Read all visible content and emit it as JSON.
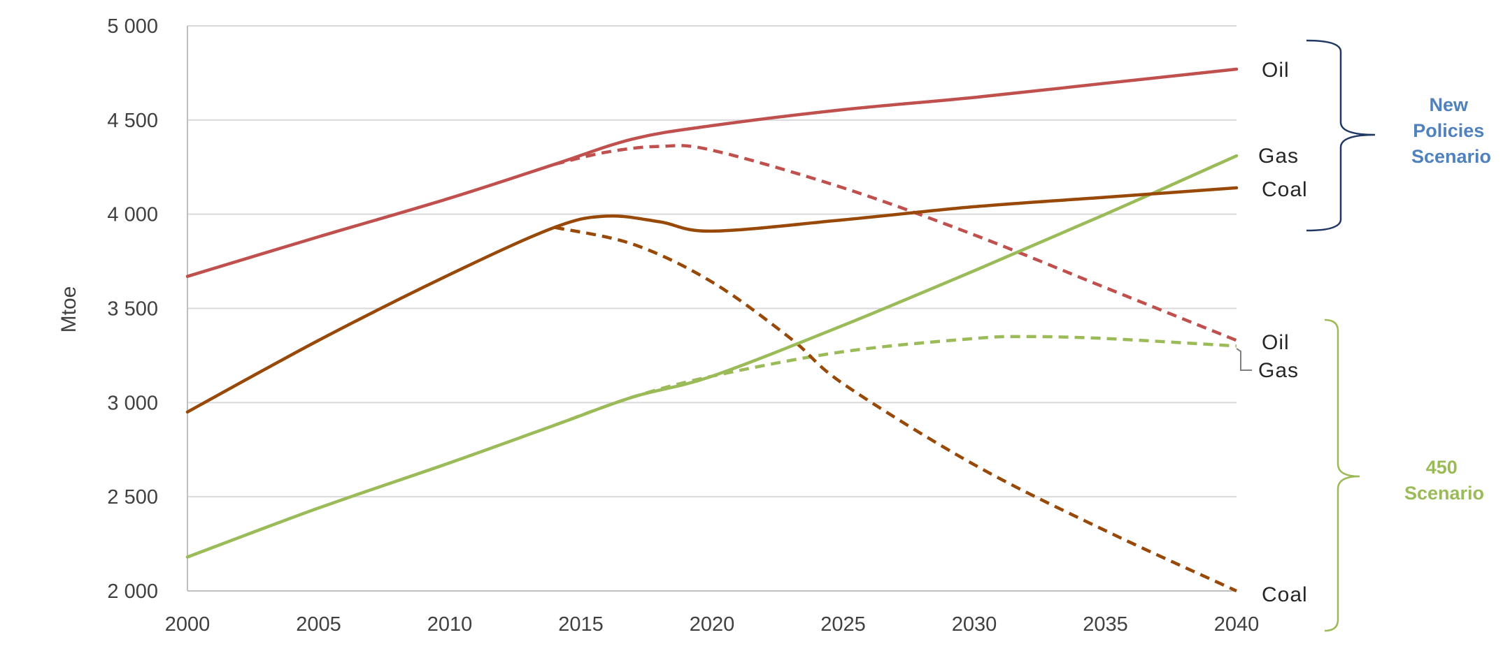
{
  "chart_data": {
    "type": "line",
    "title": "",
    "xlabel": "",
    "ylabel": "Mtoe",
    "xlim": [
      2000,
      2040
    ],
    "ylim": [
      2000,
      5000
    ],
    "x_ticks": [
      "2000",
      "2005",
      "2010",
      "2015",
      "2020",
      "2025",
      "2030",
      "2035",
      "2040"
    ],
    "y_ticks": [
      "2 000",
      "2 500",
      "3 000",
      "3 500",
      "4 000",
      "4 500",
      "5 000"
    ],
    "grid": true,
    "series": [
      {
        "name": "Oil",
        "scenario": "New Policies Scenario",
        "color": "#c0504d",
        "style": "solid",
        "points": [
          [
            2000,
            3670
          ],
          [
            2005,
            3880
          ],
          [
            2010,
            4085
          ],
          [
            2014,
            4265
          ],
          [
            2017,
            4400
          ],
          [
            2020,
            4470
          ],
          [
            2025,
            4555
          ],
          [
            2030,
            4620
          ],
          [
            2035,
            4695
          ],
          [
            2040,
            4770
          ]
        ]
      },
      {
        "name": "Gas",
        "scenario": "New Policies Scenario",
        "color": "#9bbb59",
        "style": "solid",
        "points": [
          [
            2000,
            2180
          ],
          [
            2005,
            2440
          ],
          [
            2010,
            2680
          ],
          [
            2014,
            2880
          ],
          [
            2017,
            3030
          ],
          [
            2020,
            3140
          ],
          [
            2025,
            3410
          ],
          [
            2030,
            3700
          ],
          [
            2035,
            4000
          ],
          [
            2040,
            4310
          ]
        ]
      },
      {
        "name": "Coal",
        "scenario": "New Policies Scenario",
        "color": "#984807",
        "style": "solid",
        "points": [
          [
            2000,
            2950
          ],
          [
            2005,
            3330
          ],
          [
            2010,
            3680
          ],
          [
            2014,
            3930
          ],
          [
            2016,
            3990
          ],
          [
            2018,
            3960
          ],
          [
            2020,
            3910
          ],
          [
            2025,
            3970
          ],
          [
            2030,
            4040
          ],
          [
            2035,
            4090
          ],
          [
            2040,
            4140
          ]
        ]
      },
      {
        "name": "Oil",
        "scenario": "450 Scenario",
        "color": "#c0504d",
        "style": "dashed",
        "points": [
          [
            2014,
            4265
          ],
          [
            2016,
            4330
          ],
          [
            2018,
            4360
          ],
          [
            2020,
            4340
          ],
          [
            2025,
            4140
          ],
          [
            2030,
            3890
          ],
          [
            2035,
            3610
          ],
          [
            2040,
            3330
          ]
        ]
      },
      {
        "name": "Gas",
        "scenario": "450 Scenario",
        "color": "#9bbb59",
        "style": "dashed",
        "points": [
          [
            2014,
            2880
          ],
          [
            2017,
            3030
          ],
          [
            2020,
            3140
          ],
          [
            2025,
            3270
          ],
          [
            2030,
            3340
          ],
          [
            2032,
            3350
          ],
          [
            2035,
            3340
          ],
          [
            2040,
            3300
          ]
        ]
      },
      {
        "name": "Coal",
        "scenario": "450 Scenario",
        "color": "#984807",
        "style": "dashed",
        "points": [
          [
            2014,
            3930
          ],
          [
            2017,
            3840
          ],
          [
            2020,
            3640
          ],
          [
            2023,
            3340
          ],
          [
            2025,
            3100
          ],
          [
            2030,
            2670
          ],
          [
            2035,
            2320
          ],
          [
            2040,
            2000
          ]
        ]
      }
    ],
    "end_labels": {
      "nps": [
        "Oil",
        "Gas",
        "Coal"
      ],
      "s450": [
        "Oil",
        "Gas",
        "Coal"
      ]
    },
    "scenario_labels": {
      "nps": {
        "lines": [
          "New",
          "Policies",
          "Scenario"
        ],
        "color": "#4f81bd",
        "bracket_color": "#1f3864"
      },
      "s450": {
        "lines": [
          "450",
          "Scenario"
        ],
        "color": "#9bbb59",
        "bracket_color": "#9bbb59"
      }
    }
  }
}
